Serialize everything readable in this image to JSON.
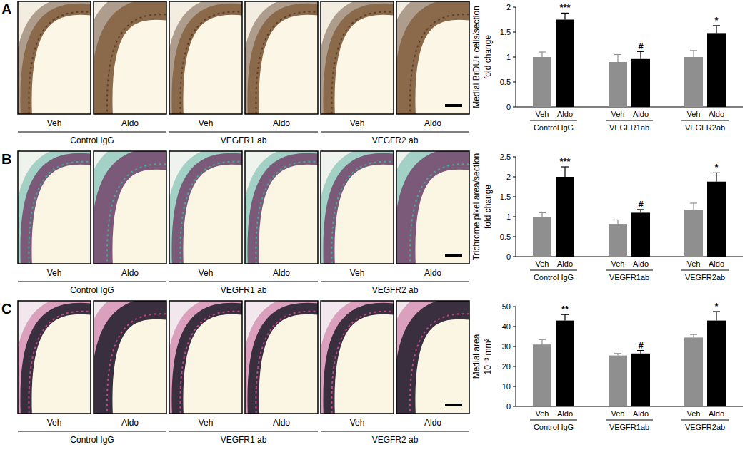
{
  "panels": [
    {
      "label": "A",
      "image_labels": [
        "Veh",
        "Aldo",
        "Veh",
        "Aldo",
        "Veh",
        "Aldo"
      ],
      "image_groups": [
        "Control IgG",
        "VEGFR1 ab",
        "VEGFR2 ab"
      ]
    },
    {
      "label": "B",
      "image_labels": [
        "Veh",
        "Aldo",
        "Veh",
        "Aldo",
        "Veh",
        "Aldo"
      ],
      "image_groups": [
        "Control IgG",
        "VEGFR1 ab",
        "VEGFR2 ab"
      ]
    },
    {
      "label": "C",
      "image_labels": [
        "Veh",
        "Aldo",
        "Veh",
        "Aldo",
        "Veh",
        "Aldo"
      ],
      "image_groups": [
        "Control IgG",
        "VEGFR1 ab",
        "VEGFR2 ab"
      ]
    }
  ],
  "chart_data": [
    {
      "type": "bar",
      "y_label": [
        "Medial BrDU+ cells/section",
        "fold change"
      ],
      "categories": [
        "Veh",
        "Aldo",
        "Veh",
        "Aldo",
        "Veh",
        "Aldo"
      ],
      "groups": [
        "Control IgG",
        "VEGFR1ab",
        "VEGFR2ab"
      ],
      "values": [
        1.0,
        1.75,
        0.9,
        0.96,
        1.0,
        1.48
      ],
      "errors": [
        0.1,
        0.13,
        0.15,
        0.15,
        0.13,
        0.15
      ],
      "significance": [
        null,
        "***",
        null,
        "#",
        null,
        "*"
      ],
      "colors": [
        "#8f8f8f",
        "#000000",
        "#8f8f8f",
        "#000000",
        "#8f8f8f",
        "#000000"
      ],
      "ylim": [
        0,
        2
      ],
      "yticks": [
        0,
        0.5,
        1,
        1.5,
        2
      ],
      "grid": false
    },
    {
      "type": "bar",
      "y_label": [
        "Trichrome pixel area/section",
        "fold change"
      ],
      "categories": [
        "Veh",
        "Aldo",
        "Veh",
        "Aldo",
        "Veh",
        "Aldo"
      ],
      "groups": [
        "Control IgG",
        "VEGFR1ab",
        "VEGFR2ab"
      ],
      "values": [
        1.0,
        2.0,
        0.82,
        1.1,
        1.17,
        1.88
      ],
      "errors": [
        0.1,
        0.25,
        0.1,
        0.08,
        0.17,
        0.22
      ],
      "significance": [
        null,
        "***",
        null,
        "#",
        null,
        "*"
      ],
      "colors": [
        "#8f8f8f",
        "#000000",
        "#8f8f8f",
        "#000000",
        "#8f8f8f",
        "#000000"
      ],
      "ylim": [
        0,
        2.5
      ],
      "yticks": [
        0,
        0.5,
        1,
        1.5,
        2,
        2.5
      ],
      "grid": false
    },
    {
      "type": "bar",
      "y_label": [
        "Medial area",
        "10⁻³ mm²"
      ],
      "categories": [
        "Veh",
        "Aldo",
        "Veh",
        "Aldo",
        "Veh",
        "Aldo"
      ],
      "groups": [
        "Control IgG",
        "VEGFR1ab",
        "VEGFR2ab"
      ],
      "values": [
        31,
        43,
        25.5,
        26.5,
        34.5,
        43
      ],
      "errors": [
        2.5,
        3,
        1,
        1.5,
        1.5,
        4.5
      ],
      "significance": [
        null,
        "**",
        null,
        "#",
        null,
        "*"
      ],
      "colors": [
        "#8f8f8f",
        "#000000",
        "#8f8f8f",
        "#000000",
        "#8f8f8f",
        "#000000"
      ],
      "ylim": [
        0,
        50
      ],
      "yticks": [
        0,
        10,
        20,
        30,
        40,
        50
      ],
      "grid": false
    }
  ]
}
